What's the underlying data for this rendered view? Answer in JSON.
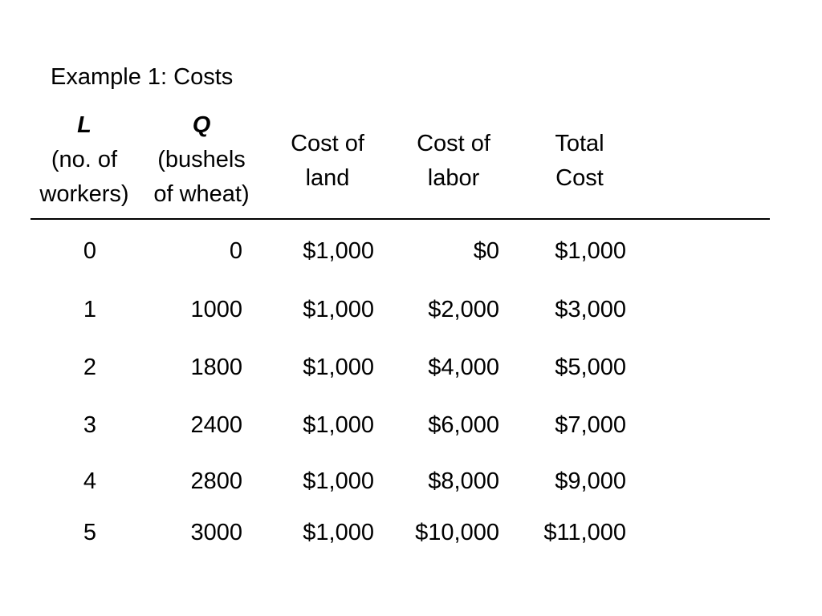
{
  "title": "Example 1:  Costs",
  "headers": {
    "L": {
      "symbol": "L",
      "line1": "(no. of",
      "line2": "workers)"
    },
    "Q": {
      "symbol": "Q",
      "line1": "(bushels",
      "line2": "of wheat)"
    },
    "land": {
      "line1": "Cost of",
      "line2": "land"
    },
    "labor": {
      "line1": "Cost of",
      "line2": "labor"
    },
    "total": {
      "line1": "Total",
      "line2": "Cost"
    }
  },
  "rows": [
    {
      "L": "0",
      "Q": "0",
      "land": "$1,000",
      "labor": "$0",
      "total": "$1,000"
    },
    {
      "L": "1",
      "Q": "1000",
      "land": "$1,000",
      "labor": "$2,000",
      "total": "$3,000"
    },
    {
      "L": "2",
      "Q": "1800",
      "land": "$1,000",
      "labor": "$4,000",
      "total": "$5,000"
    },
    {
      "L": "3",
      "Q": "2400",
      "land": "$1,000",
      "labor": "$6,000",
      "total": "$7,000"
    },
    {
      "L": "4",
      "Q": "2800",
      "land": "$1,000",
      "labor": "$8,000",
      "total": "$9,000"
    },
    {
      "L": "5",
      "Q": "3000",
      "land": "$1,000",
      "labor": "$10,000",
      "total": "$11,000"
    }
  ]
}
